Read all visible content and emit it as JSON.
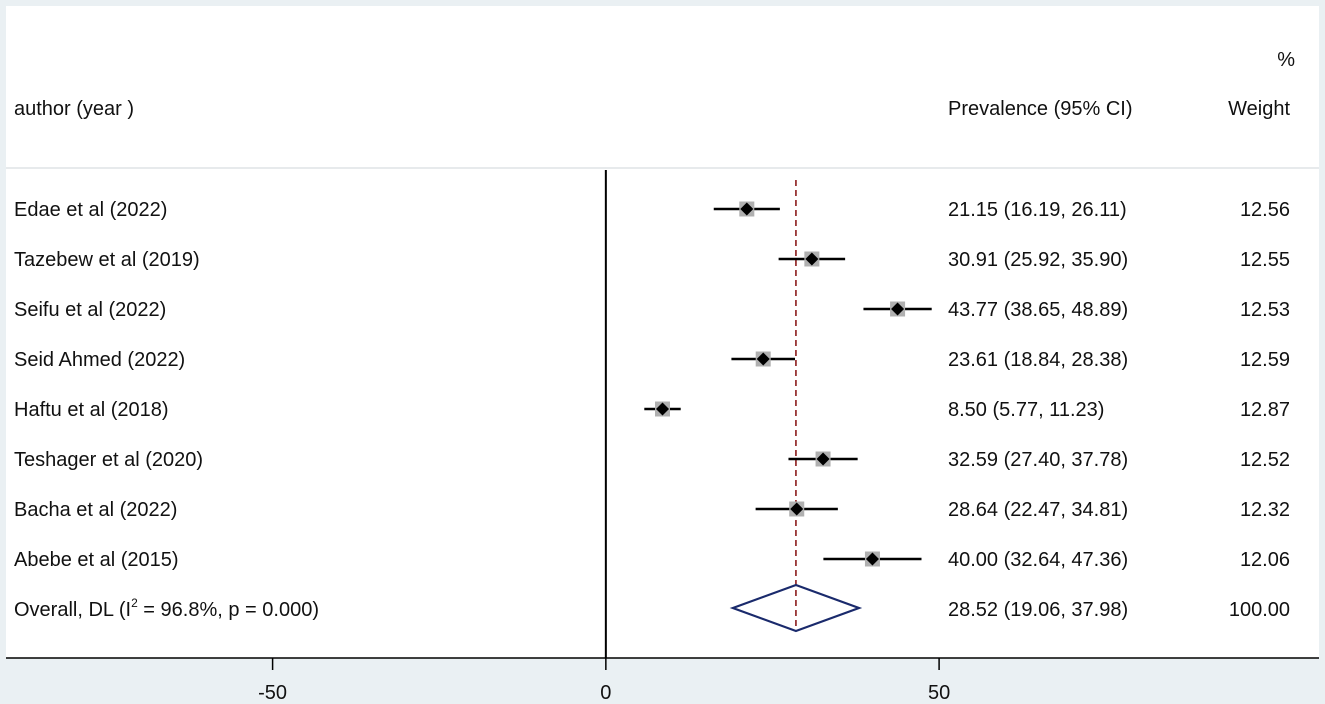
{
  "chart_data": {
    "type": "forest",
    "headers": {
      "study": "author (year )",
      "effect": "Prevalence (95% CI)",
      "weight_unit": "%",
      "weight": "Weight"
    },
    "studies": [
      {
        "label": "Edae et al (2022)",
        "est": 21.15,
        "lo": 16.19,
        "hi": 26.11,
        "ci_text": "21.15 (16.19, 26.11)",
        "weight": "12.56"
      },
      {
        "label": "Tazebew et al (2019)",
        "est": 30.91,
        "lo": 25.92,
        "hi": 35.9,
        "ci_text": "30.91 (25.92, 35.90)",
        "weight": "12.55"
      },
      {
        "label": "Seifu et al (2022)",
        "est": 43.77,
        "lo": 38.65,
        "hi": 48.89,
        "ci_text": "43.77 (38.65, 48.89)",
        "weight": "12.53"
      },
      {
        "label": "Seid Ahmed (2022)",
        "est": 23.61,
        "lo": 18.84,
        "hi": 28.38,
        "ci_text": "23.61 (18.84, 28.38)",
        "weight": "12.59"
      },
      {
        "label": "Haftu et al (2018)",
        "est": 8.5,
        "lo": 5.77,
        "hi": 11.23,
        "ci_text": "8.50 (5.77, 11.23)",
        "weight": "12.87"
      },
      {
        "label": "Teshager et al (2020)",
        "est": 32.59,
        "lo": 27.4,
        "hi": 37.78,
        "ci_text": "32.59 (27.40, 37.78)",
        "weight": "12.52"
      },
      {
        "label": "Bacha et al (2022)",
        "est": 28.64,
        "lo": 22.47,
        "hi": 34.81,
        "ci_text": "28.64 (22.47, 34.81)",
        "weight": "12.32"
      },
      {
        "label": "Abebe et al (2015)",
        "est": 40.0,
        "lo": 32.64,
        "hi": 47.36,
        "ci_text": "40.00 (32.64, 47.36)",
        "weight": "12.06"
      }
    ],
    "overall": {
      "label_prefix": "Overall, DL (I",
      "label_sup": "2",
      "label_suffix": " = 96.8%, p = 0.000)",
      "est": 28.52,
      "lo": 19.06,
      "hi": 37.98,
      "ci_text": "28.52 (19.06, 37.98)",
      "weight": "100.00"
    },
    "x_ticks": [
      -50,
      0,
      50
    ],
    "x_tick_labels": [
      "-50",
      "0",
      "50"
    ],
    "xlim": [
      -90,
      107
    ],
    "null_line": 0,
    "colors": {
      "ci_line": "#000000",
      "point": "#000000",
      "weight_box": "#b0b0b0",
      "overall_diamond": "#1a2a6c",
      "overall_line": "#8b1a1a",
      "axis_band": "#eaf0f3"
    }
  }
}
